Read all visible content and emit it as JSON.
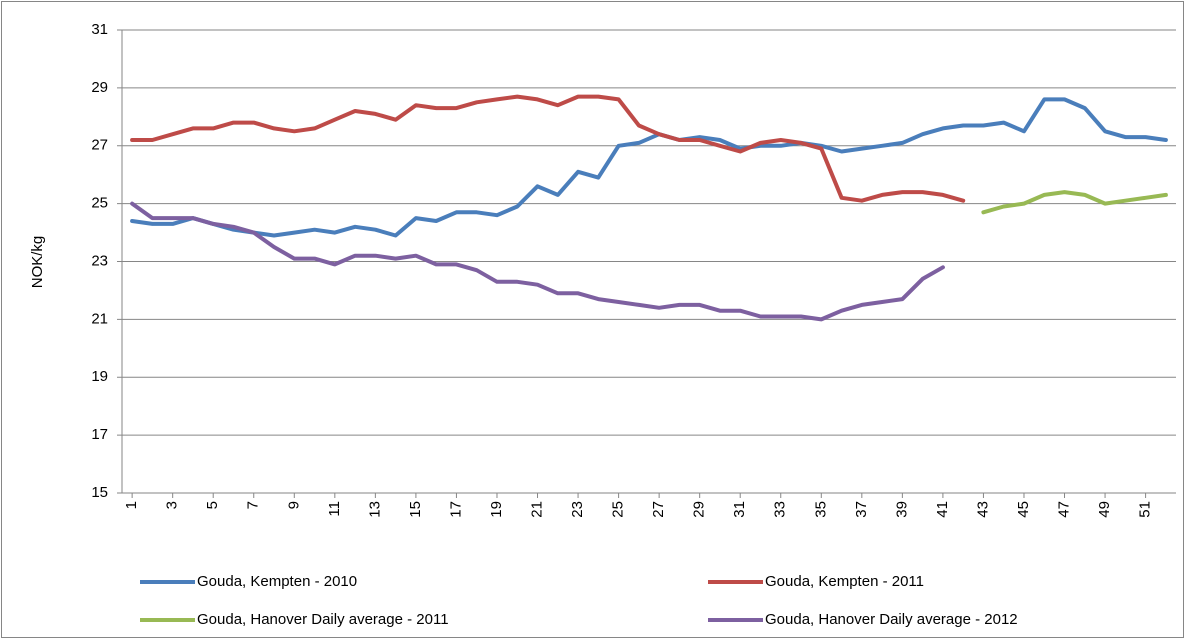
{
  "chart_data": {
    "type": "line",
    "y_label": "NOK/kg",
    "x": [
      1,
      2,
      3,
      4,
      5,
      6,
      7,
      8,
      9,
      10,
      11,
      12,
      13,
      14,
      15,
      16,
      17,
      18,
      19,
      20,
      21,
      22,
      23,
      24,
      25,
      26,
      27,
      28,
      29,
      30,
      31,
      32,
      33,
      34,
      35,
      36,
      37,
      38,
      39,
      40,
      41,
      42,
      43,
      44,
      45,
      46,
      47,
      48,
      49,
      50,
      51,
      52
    ],
    "xlim": [
      0.5,
      52.5
    ],
    "xticks": [
      1,
      3,
      5,
      7,
      9,
      11,
      13,
      15,
      17,
      19,
      21,
      23,
      25,
      27,
      29,
      31,
      33,
      35,
      37,
      39,
      41,
      43,
      45,
      47,
      49,
      51
    ],
    "ylim": [
      15,
      31
    ],
    "yticks": [
      15,
      17,
      19,
      21,
      23,
      25,
      27,
      29,
      31
    ],
    "grid": true,
    "legend_position": "bottom",
    "series": [
      {
        "name": "Gouda, Kempten - 2010",
        "color": "#4a7ebb",
        "values": [
          24.4,
          24.3,
          24.3,
          24.5,
          24.3,
          24.1,
          24.0,
          23.9,
          24.0,
          24.1,
          24.0,
          24.2,
          24.1,
          23.9,
          24.5,
          24.4,
          24.7,
          24.7,
          24.6,
          24.9,
          25.6,
          25.3,
          26.1,
          25.9,
          27.0,
          27.1,
          27.4,
          27.2,
          27.3,
          27.2,
          26.9,
          27.0,
          27.0,
          27.1,
          27.0,
          26.8,
          26.9,
          27.0,
          27.1,
          27.4,
          27.6,
          27.7,
          27.7,
          27.8,
          27.5,
          28.6,
          28.6,
          28.3,
          27.5,
          27.3,
          27.3,
          27.2
        ]
      },
      {
        "name": "Gouda, Kempten - 2011",
        "color": "#be4b48",
        "values": [
          27.2,
          27.2,
          27.4,
          27.6,
          27.6,
          27.8,
          27.8,
          27.6,
          27.5,
          27.6,
          27.9,
          28.2,
          28.1,
          27.9,
          28.4,
          28.3,
          28.3,
          28.5,
          28.6,
          28.7,
          28.6,
          28.4,
          28.7,
          28.7,
          28.6,
          27.7,
          27.4,
          27.2,
          27.2,
          27.0,
          26.8,
          27.1,
          27.2,
          27.1,
          26.9,
          25.2,
          25.1,
          25.3,
          25.4,
          25.4,
          25.3,
          25.1,
          null,
          null,
          null,
          null,
          null,
          null,
          null,
          null,
          null,
          null
        ]
      },
      {
        "name": "Gouda, Hanover Daily average - 2011",
        "color": "#98b954",
        "values": [
          null,
          null,
          null,
          null,
          null,
          null,
          null,
          null,
          null,
          null,
          null,
          null,
          null,
          null,
          null,
          null,
          null,
          null,
          null,
          null,
          null,
          null,
          null,
          null,
          null,
          null,
          null,
          null,
          null,
          null,
          null,
          null,
          null,
          null,
          null,
          null,
          null,
          null,
          null,
          null,
          null,
          null,
          24.7,
          24.9,
          25.0,
          25.3,
          25.4,
          25.3,
          25.0,
          25.1,
          25.2,
          25.3
        ]
      },
      {
        "name": "Gouda, Hanover Daily average - 2012",
        "color": "#7d60a0",
        "values": [
          25.0,
          24.5,
          24.5,
          24.5,
          24.3,
          24.2,
          24.0,
          23.5,
          23.1,
          23.1,
          22.9,
          23.2,
          23.2,
          23.1,
          23.2,
          22.9,
          22.9,
          22.7,
          22.3,
          22.3,
          22.2,
          21.9,
          21.9,
          21.7,
          21.6,
          21.5,
          21.4,
          21.5,
          21.5,
          21.3,
          21.3,
          21.1,
          21.1,
          21.1,
          21.0,
          21.3,
          21.5,
          21.6,
          21.7,
          22.4,
          22.8,
          null,
          null,
          null,
          null,
          null,
          null,
          null,
          null,
          null,
          null,
          null
        ]
      }
    ]
  }
}
